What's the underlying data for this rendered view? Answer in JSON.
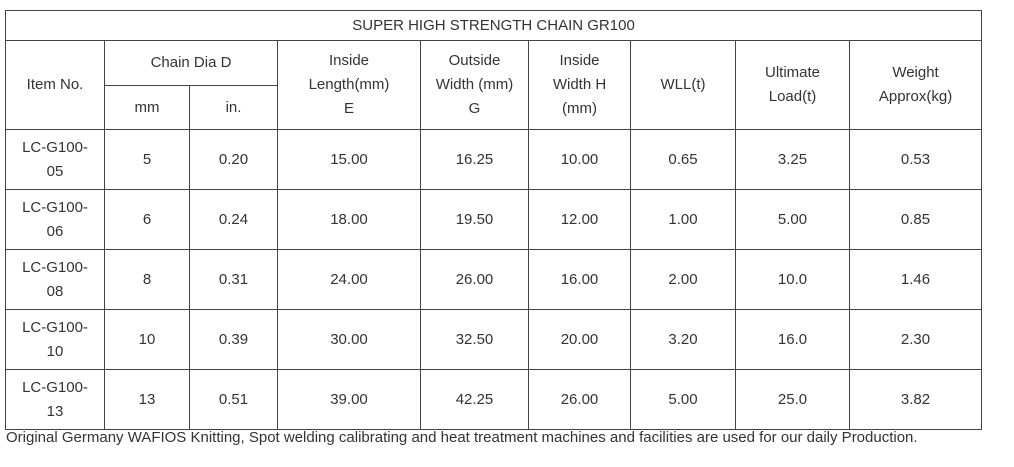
{
  "table": {
    "title": "SUPER HIGH STRENGTH CHAIN GR100",
    "headers": {
      "item_no": "Item No.",
      "chain_dia": "Chain Dia D",
      "mm": "mm",
      "in": "in.",
      "inside_length": [
        "Inside",
        "Length(mm)",
        "E"
      ],
      "outside_width": [
        "Outside",
        "Width (mm)",
        "G"
      ],
      "inside_width": [
        "Inside",
        "Width H",
        "(mm)"
      ],
      "wll": "WLL(t)",
      "ultimate_load": [
        "Ultimate",
        "Load(t)"
      ],
      "weight": [
        "Weight",
        "Approx(kg)"
      ]
    },
    "rows": [
      [
        "LC-G100-05",
        "5",
        "0.20",
        "15.00",
        "16.25",
        "10.00",
        "0.65",
        "3.25",
        "0.53"
      ],
      [
        "LC-G100-06",
        "6",
        "0.24",
        "18.00",
        "19.50",
        "12.00",
        "1.00",
        "5.00",
        "0.85"
      ],
      [
        "LC-G100-08",
        "8",
        "0.31",
        "24.00",
        "26.00",
        "16.00",
        "2.00",
        "10.0",
        "1.46"
      ],
      [
        "LC-G100-10",
        "10",
        "0.39",
        "30.00",
        "32.50",
        "20.00",
        "3.20",
        "16.0",
        "2.30"
      ],
      [
        "LC-G100-13",
        "13",
        "0.51",
        "39.00",
        "42.25",
        "26.00",
        "5.00",
        "25.0",
        "3.82"
      ]
    ],
    "footnote": "Original Germany WAFIOS Knitting, Spot welding calibrating and heat treatment machines and facilities are used for our daily Production."
  }
}
